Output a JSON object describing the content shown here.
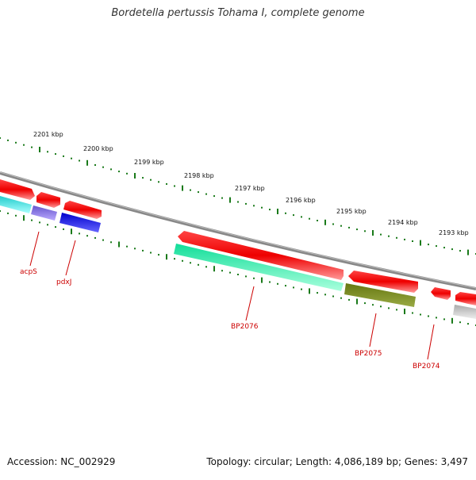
{
  "title": "Bordetella pertussis Tohama I, complete genome",
  "footer": {
    "accession": "Accession: NC_002929",
    "stats": "Topology: circular; Length: 4,086,189 bp; Genes: 3,497"
  },
  "kbp_labels": [
    "2201 kbp",
    "2200 kbp",
    "2199 kbp",
    "2198 kbp",
    "2197 kbp",
    "2196 kbp",
    "2195 kbp",
    "2194 kbp",
    "2193 kbp"
  ],
  "gene_labels": [
    "acpS",
    "pdxJ",
    "BP2076",
    "BP2075",
    "BP2074"
  ],
  "colors": {
    "backbone": "#7a7a7a",
    "tick": "#1a7a1a",
    "forward": "#ee1111",
    "cyan": "#22cccc",
    "purple": "#7766cc",
    "blue": "#1111dd",
    "spring": "#22eeaa",
    "olive": "#667722",
    "grey": "#bbbbbb",
    "label": "#cc0000"
  }
}
